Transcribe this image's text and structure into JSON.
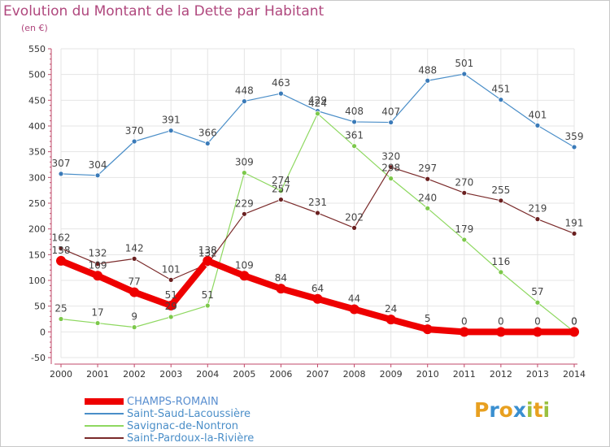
{
  "title": "Evolution du Montant de la Dette par Habitant",
  "subtitle": "(en €)",
  "logo": {
    "letters": [
      "P",
      "r",
      "o",
      "x",
      "i",
      "t",
      "i"
    ],
    "colors": [
      "#e8a020",
      "#3a8fd0",
      "#e8a020",
      "#3a8fd0",
      "#9ac040",
      "#e8a020",
      "#9ac040"
    ]
  },
  "chart_data": {
    "type": "line",
    "title": "Evolution du Montant de la Dette par Habitant",
    "ylabel": "(en €)",
    "xlabel": "",
    "x": [
      "2000",
      "2001",
      "2002",
      "2003",
      "2004",
      "2005",
      "2006",
      "2007",
      "2008",
      "2009",
      "2010",
      "2011",
      "2012",
      "2013",
      "2014"
    ],
    "ylim": [
      -50,
      550
    ],
    "yticks": [
      -50,
      0,
      50,
      100,
      150,
      200,
      250,
      300,
      350,
      400,
      450,
      500,
      550
    ],
    "grid": true,
    "legend_position": "bottom-left",
    "series": [
      {
        "name": "Saint-Saud-Lacoussière",
        "color": "#4a8ec8",
        "marker": "#3a7ab8",
        "values": [
          307,
          304,
          370,
          391,
          366,
          448,
          463,
          429,
          408,
          407,
          488,
          501,
          451,
          401,
          359
        ],
        "labels": [
          "307",
          "304",
          "370",
          "391",
          "366",
          "448",
          "463",
          "429",
          "408",
          "407",
          "488",
          "501",
          "451",
          "401",
          "359"
        ]
      },
      {
        "name": "Savignac-de-Nontron",
        "color": "#8ed860",
        "marker": "#7cc84a",
        "values": [
          25,
          17,
          9,
          29,
          51,
          309,
          274,
          424,
          361,
          298,
          240,
          179,
          116,
          57,
          0
        ],
        "labels": [
          "25",
          "17",
          "9",
          "",
          "51",
          "309",
          "274",
          "424",
          "361",
          "",
          "240",
          "179",
          "116",
          "57",
          "0"
        ]
      },
      {
        "name": "Saint-Pardoux-la-Rivière",
        "color": "#7a2a2a",
        "marker": "#6a2020",
        "values": [
          162,
          132,
          142,
          101,
          132,
          229,
          257,
          231,
          202,
          320,
          297,
          270,
          255,
          219,
          191
        ],
        "labels": [
          "162",
          "132",
          "142",
          "101",
          "132",
          "229",
          "257",
          "231",
          "202",
          "320",
          "297",
          "270",
          "255",
          "219",
          "191"
        ]
      },
      {
        "name": "CHAMPS-ROMAIN",
        "color": "#ee0000",
        "marker": "#ee0000",
        "values": [
          138,
          109,
          77,
          51,
          138,
          109,
          84,
          64,
          44,
          24,
          5,
          0,
          0,
          0,
          0
        ],
        "labels": [
          "138",
          "109",
          "77",
          "51",
          "138",
          "109",
          "84",
          "64",
          "44",
          "24",
          "5",
          "0",
          "0",
          "0",
          "0"
        ],
        "width": "thick"
      }
    ],
    "extra_labels": [
      "29",
      "298"
    ]
  },
  "legend": [
    {
      "name": "CHAMPS-ROMAIN",
      "color": "#ee0000",
      "text_color": "#5a8fd0",
      "thick": true
    },
    {
      "name": "Saint-Saud-Lacoussière",
      "color": "#4a8ec8",
      "text_color": "#4a8ec8",
      "thick": false
    },
    {
      "name": "Savignac-de-Nontron",
      "color": "#8ed860",
      "text_color": "#4a8ec8",
      "thick": false
    },
    {
      "name": "Saint-Pardoux-la-Rivière",
      "color": "#7a2a2a",
      "text_color": "#4a8ec8",
      "thick": false
    }
  ]
}
